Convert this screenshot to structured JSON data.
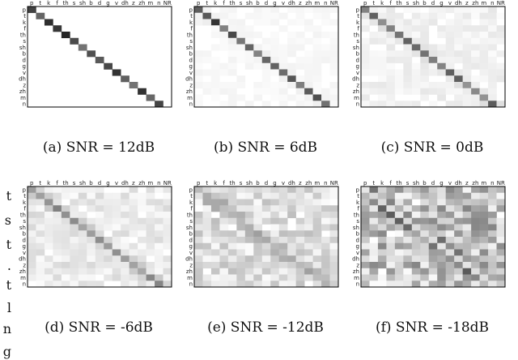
{
  "figure": {
    "phoneme_labels_top": [
      "p",
      "t",
      "k",
      "f",
      "th",
      "s",
      "sh",
      "b",
      "d",
      "g",
      "v",
      "dh",
      "z",
      "zh",
      "m",
      "n",
      "NR"
    ],
    "phoneme_labels_left": [
      "p",
      "t",
      "k",
      "f",
      "th",
      "s",
      "sh",
      "b",
      "d",
      "g",
      "v",
      "dh",
      "z",
      "zh",
      "m",
      "n"
    ],
    "side_fragments": [
      "t",
      "s",
      "t",
      ".",
      "t",
      "l",
      "n",
      "g"
    ]
  },
  "chart_data": [
    {
      "type": "heatmap",
      "caption": "(a) SNR = 12dB",
      "noise": 0.0,
      "diag": 0.9
    },
    {
      "type": "heatmap",
      "caption": "(b) SNR = 6dB",
      "noise": 0.03,
      "diag": 0.8
    },
    {
      "type": "heatmap",
      "caption": "(c) SNR = 0dB",
      "noise": 0.06,
      "diag": 0.65
    },
    {
      "type": "heatmap",
      "caption": "(d) SNR = -6dB",
      "noise": 0.1,
      "diag": 0.55
    },
    {
      "type": "heatmap",
      "caption": "(e) SNR = -12dB",
      "noise": 0.16,
      "diag": 0.4
    },
    {
      "type": "heatmap",
      "caption": "(f) SNR = -18dB",
      "noise": 0.3,
      "diag": 0.15
    }
  ],
  "colors": {
    "cell_max": "#000000",
    "cell_min": "#ffffff",
    "frame": "#000000"
  }
}
